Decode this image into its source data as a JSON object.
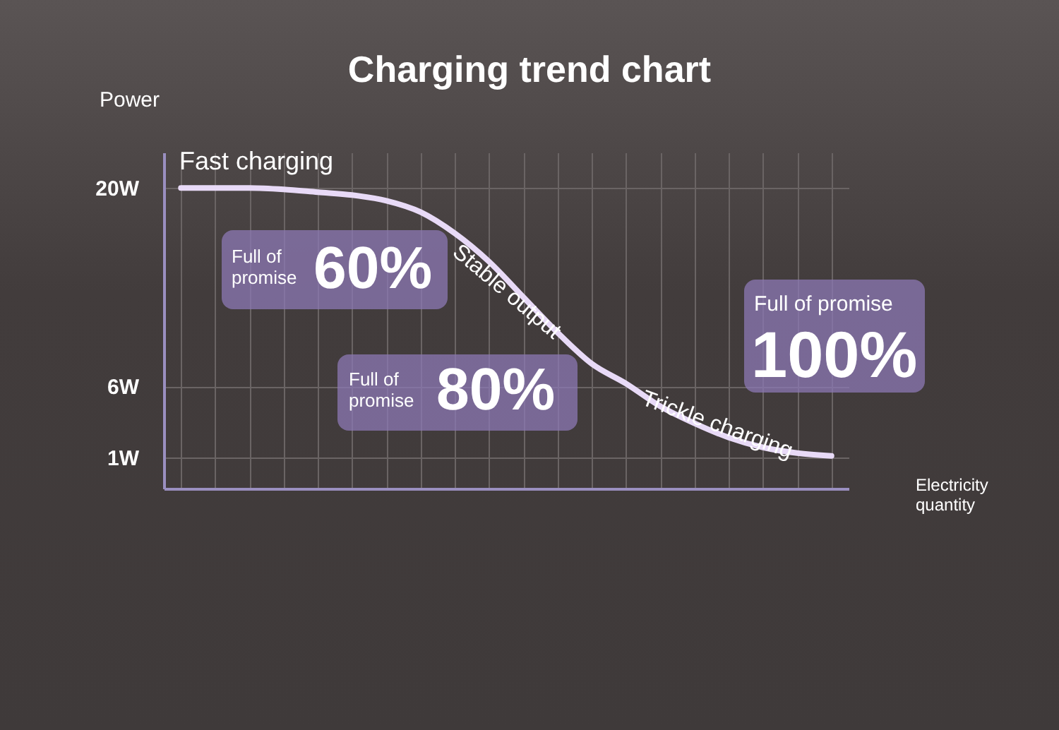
{
  "chart_data": {
    "type": "line",
    "title": "Charging trend chart",
    "ylabel": "Power",
    "xlabel": "Electricity quantity",
    "categories": [
      null,
      null,
      null,
      null,
      null,
      null,
      null,
      null,
      null,
      null,
      null,
      null,
      null,
      null,
      null,
      null,
      null,
      null,
      null,
      null
    ],
    "series": [
      {
        "color": "#e8daf7",
        "values": [
          20,
          20,
          20,
          19.9,
          19.7,
          19.5,
          19.1,
          18.3,
          16.8,
          14.8,
          12.3,
          9.8,
          7.6,
          6.2,
          4.6,
          3.4,
          2.4,
          1.7,
          1.3,
          1.1
        ]
      }
    ],
    "ylim": [
      -1.2,
      22.5
    ],
    "yticks": [
      {
        "value": 1,
        "label": "1W"
      },
      {
        "value": 6,
        "label": "6W"
      },
      {
        "value": 20,
        "label": "20W"
      }
    ],
    "grid": true,
    "annotations": [
      "Fast charging",
      "Stable output",
      "Trickle charging",
      "Full of promise",
      "60%",
      "Full of promise",
      "80%",
      "Full of promise",
      "100%"
    ]
  }
}
